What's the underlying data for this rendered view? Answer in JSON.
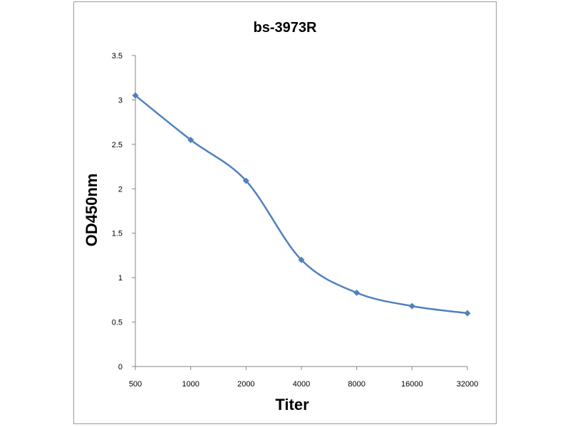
{
  "chart_data": {
    "type": "line",
    "title": "bs-3973R",
    "xlabel": "Titer",
    "ylabel": "OD450nm",
    "categories": [
      "500",
      "1000",
      "2000",
      "4000",
      "8000",
      "16000",
      "32000"
    ],
    "series": [
      {
        "values": [
          3.05,
          2.55,
          2.09,
          1.2,
          0.83,
          0.68,
          0.6
        ]
      }
    ],
    "yticks": [
      "0",
      "0.5",
      "1",
      "1.5",
      "2",
      "2.5",
      "3",
      "3.5"
    ],
    "ylim": [
      0,
      3.5
    ],
    "grid": false,
    "legend": "none",
    "colors": {
      "line": "#4F81BD",
      "axis": "#868686",
      "frame": "#9a9a9a"
    }
  }
}
